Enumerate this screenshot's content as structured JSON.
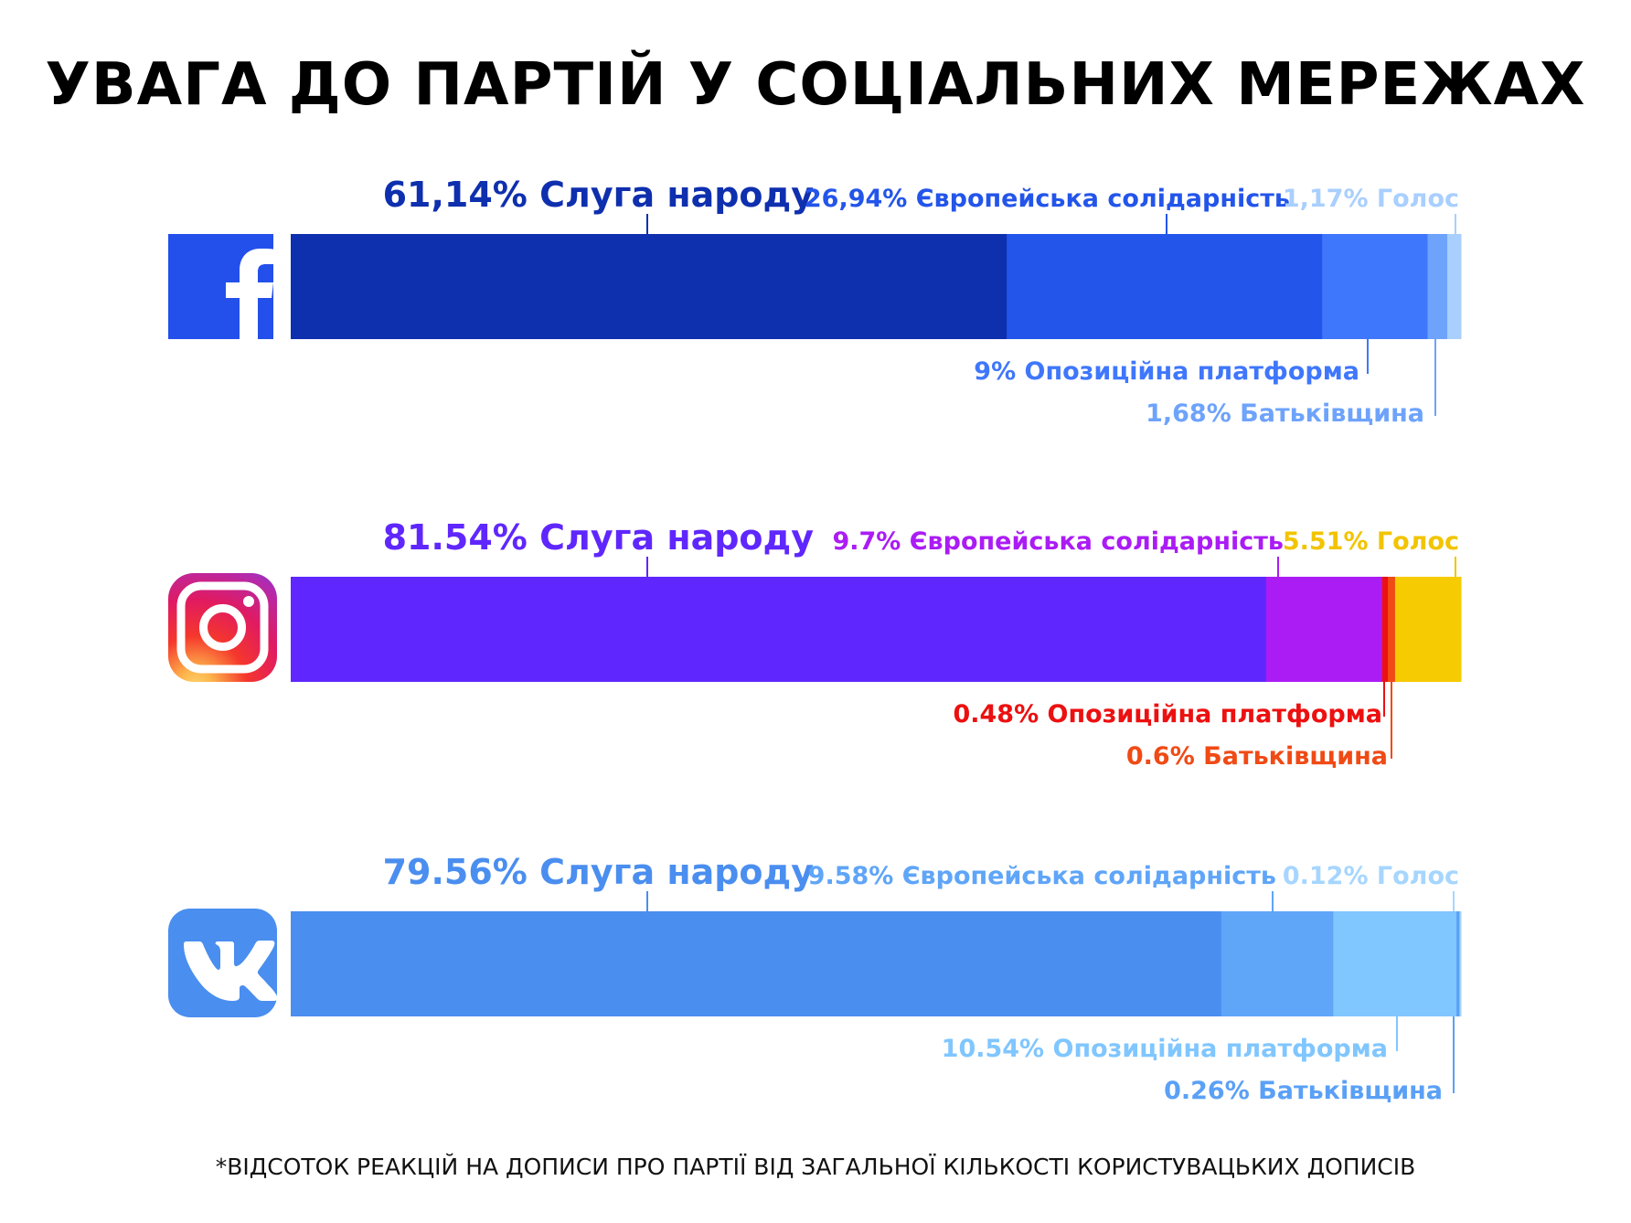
{
  "title": "УВАГА ДО ПАРТІЙ У СОЦІАЛЬНИХ МЕРЕЖАХ",
  "footnote": "*ВІДСОТОК РЕАКЦІЙ НА ДОПИСИ ПРО ПАРТІЇ ВІД ЗАГАЛЬНОЇ КІЛЬКОСТІ КОРИСТУВАЦЬКИХ ДОПИСІВ",
  "chart_data": [
    {
      "type": "bar",
      "platform": "Facebook",
      "icon": "facebook-icon",
      "icon_color": "#2350ea",
      "series": [
        {
          "name": "Слуга народу",
          "value": 61.14,
          "label": "61,14% Слуга народу",
          "color": "#0e2fae",
          "label_color": "#0e2fae"
        },
        {
          "name": "Європейська солідарність",
          "value": 26.94,
          "label": "26,94% Європейська солідарність",
          "color": "#2355ea",
          "label_color": "#2355ea"
        },
        {
          "name": "Опозиційна платформа",
          "value": 9,
          "label": "9% Опозиційна платформа",
          "color": "#3f77fc",
          "label_color": "#3f77fc"
        },
        {
          "name": "Батьківщина",
          "value": 1.68,
          "label": "1,68% Батьківщина",
          "color": "#6ea3fb",
          "label_color": "#6ea3fb"
        },
        {
          "name": "Голос",
          "value": 1.17,
          "label": "1,17% Голос",
          "color": "#a9cffe",
          "label_color": "#a9cffe"
        }
      ]
    },
    {
      "type": "bar",
      "platform": "Instagram",
      "icon": "instagram-icon",
      "series": [
        {
          "name": "Слуга народу",
          "value": 81.54,
          "label": "81.54% Слуга народу",
          "color": "#5f27fd",
          "label_color": "#5f27fd"
        },
        {
          "name": "Європейська солідарність",
          "value": 9.7,
          "label": "9.7% Європейська солідарність",
          "color": "#ab1cf5",
          "label_color": "#ab1cf5"
        },
        {
          "name": "Опозиційна платформа",
          "value": 0.48,
          "label": "0.48% Опозиційна платформа",
          "color": "#ec1010",
          "label_color": "#ec1010"
        },
        {
          "name": "Батьківщина",
          "value": 0.6,
          "label": "0.6% Батьківщина",
          "color": "#f04a15",
          "label_color": "#f04a15"
        },
        {
          "name": "Голос",
          "value": 5.51,
          "label": "5.51% Голос",
          "color": "#f6cb02",
          "label_color": "#f2c400"
        }
      ]
    },
    {
      "type": "bar",
      "platform": "VK",
      "icon": "vk-icon",
      "icon_color": "#4a8eef",
      "series": [
        {
          "name": "Слуга народу",
          "value": 79.56,
          "label": "79.56% Слуга народу",
          "color": "#4a8eef",
          "label_color": "#4a8eef"
        },
        {
          "name": "Європейська солідарність",
          "value": 9.58,
          "label": "9.58% Європейська солідарність",
          "color": "#5fa5f8",
          "label_color": "#5fa5f8"
        },
        {
          "name": "Опозиційна платформа",
          "value": 10.54,
          "label": "10.54% Опозиційна платформа",
          "color": "#80c6ff",
          "label_color": "#80c6ff"
        },
        {
          "name": "Батьківщина",
          "value": 0.26,
          "label": "0.26% Батьківщина",
          "color": "#5aa0f6",
          "label_color": "#5aa0f6"
        },
        {
          "name": "Голос",
          "value": 0.12,
          "label": "0.12% Голос",
          "color": "#a6d6ff",
          "label_color": "#a6d6ff"
        }
      ]
    }
  ]
}
